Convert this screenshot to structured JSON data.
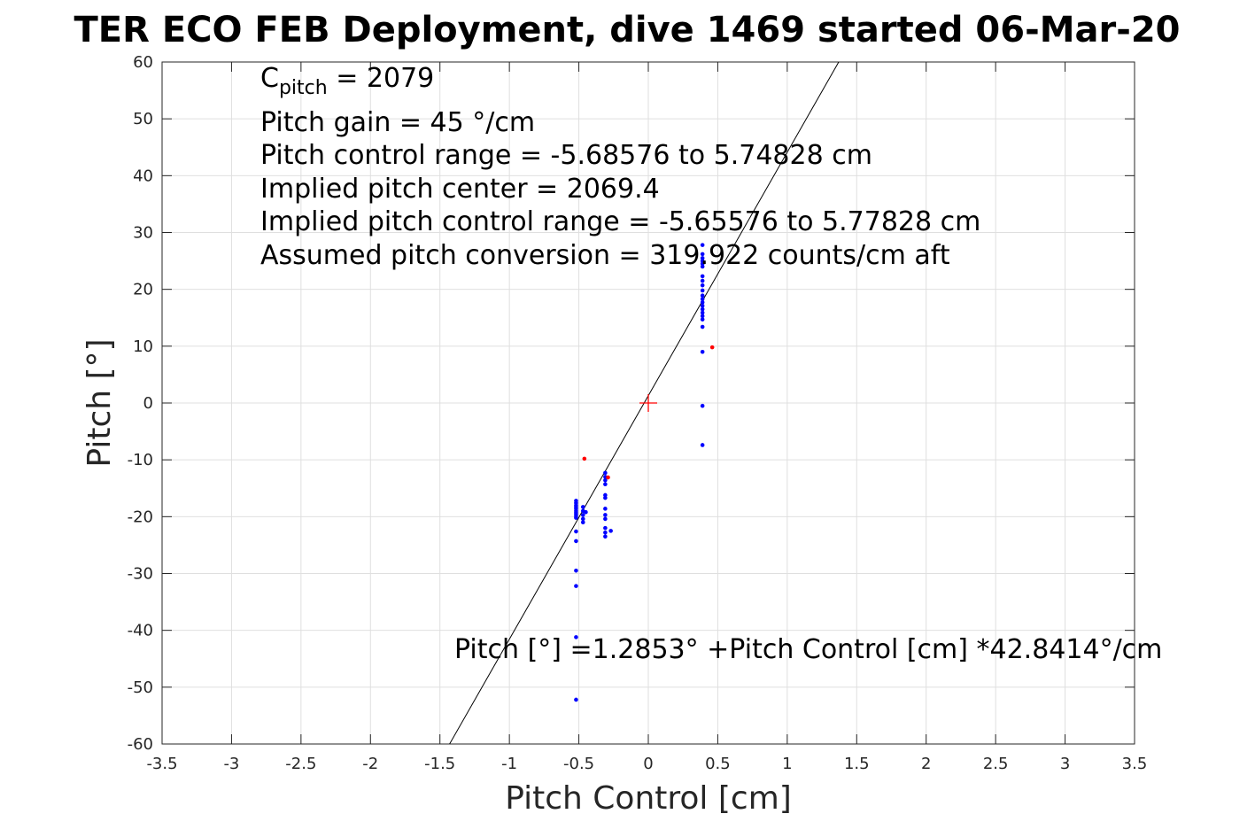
{
  "chart_data": {
    "type": "scatter",
    "title": "TER ECO FEB Deployment, dive 1469 started 06-Mar-20",
    "xlabel": "Pitch Control [cm]",
    "ylabel": "Pitch [°]",
    "xlim": [
      -3.5,
      3.5
    ],
    "ylim": [
      -60,
      60
    ],
    "xticks": [
      -3.5,
      -3,
      -2.5,
      -2,
      -1.5,
      -1,
      -0.5,
      0,
      0.5,
      1,
      1.5,
      2,
      2.5,
      3,
      3.5
    ],
    "xtick_labels": [
      "-3.5",
      "-3",
      "-2.5",
      "-2",
      "-1.5",
      "-1",
      "-0.5",
      "0",
      "0.5",
      "1",
      "1.5",
      "2",
      "2.5",
      "3",
      "3.5"
    ],
    "yticks": [
      -60,
      -50,
      -40,
      -30,
      -20,
      -10,
      0,
      10,
      20,
      30,
      40,
      50,
      60
    ],
    "ytick_labels": [
      "-60",
      "-50",
      "-40",
      "-30",
      "-20",
      "-10",
      "0",
      "10",
      "20",
      "30",
      "40",
      "50",
      "60"
    ],
    "grid": true,
    "annotations": {
      "c_pitch_main": "C",
      "c_pitch_sub": "pitch",
      "c_pitch_value": " = 2079",
      "pitch_gain": "Pitch gain = 45 °/cm",
      "control_range": "Pitch control range = -5.68576 to 5.74828 cm",
      "implied_center": "Implied pitch center = 2069.4",
      "implied_range": "Implied pitch control range = -5.65576 to 5.77828 cm",
      "conversion": "Assumed pitch conversion = 319.922 counts/cm aft",
      "fit_equation": "Pitch [°] =1.2853° +Pitch Control [cm] *42.8414°/cm"
    },
    "fit_line": {
      "intercept": 1.2853,
      "slope": 42.8414,
      "color": "#000000"
    },
    "center_marker": {
      "x": 0,
      "y": 0,
      "color": "#ff0000"
    },
    "series": [
      {
        "color": "#0000ff",
        "points": [
          [
            -0.52,
            -17.2
          ],
          [
            -0.52,
            -17.6
          ],
          [
            -0.52,
            -18.0
          ],
          [
            -0.52,
            -18.3
          ],
          [
            -0.52,
            -18.6
          ],
          [
            -0.52,
            -19.0
          ],
          [
            -0.52,
            -19.3
          ],
          [
            -0.52,
            -19.6
          ],
          [
            -0.52,
            -19.9
          ],
          [
            -0.52,
            -20.2
          ],
          [
            -0.52,
            -22.6
          ],
          [
            -0.52,
            -24.3
          ],
          [
            -0.52,
            -29.5
          ],
          [
            -0.52,
            -32.2
          ],
          [
            -0.52,
            -41.2
          ],
          [
            -0.52,
            -52.2
          ],
          [
            -0.47,
            -18.3
          ],
          [
            -0.47,
            -19.0
          ],
          [
            -0.47,
            -19.7
          ],
          [
            -0.47,
            -20.4
          ],
          [
            -0.47,
            -21.0
          ],
          [
            -0.45,
            -19.2
          ],
          [
            -0.31,
            -12.3
          ],
          [
            -0.31,
            -13.0
          ],
          [
            -0.31,
            -13.6
          ],
          [
            -0.31,
            -14.3
          ],
          [
            -0.31,
            -16.2
          ],
          [
            -0.31,
            -16.7
          ],
          [
            -0.31,
            -18.6
          ],
          [
            -0.31,
            -19.7
          ],
          [
            -0.31,
            -20.4
          ],
          [
            -0.31,
            -22.0
          ],
          [
            -0.31,
            -22.8
          ],
          [
            -0.31,
            -23.5
          ],
          [
            -0.27,
            -22.5
          ],
          [
            0.39,
            27.8
          ],
          [
            0.39,
            26.2
          ],
          [
            0.39,
            25.5
          ],
          [
            0.39,
            25.0
          ],
          [
            0.39,
            24.5
          ],
          [
            0.39,
            24.0
          ],
          [
            0.39,
            22.3
          ],
          [
            0.39,
            21.5
          ],
          [
            0.39,
            20.7
          ],
          [
            0.39,
            19.8
          ],
          [
            0.39,
            18.9
          ],
          [
            0.39,
            18.3
          ],
          [
            0.39,
            17.7
          ],
          [
            0.39,
            17.1
          ],
          [
            0.39,
            16.5
          ],
          [
            0.39,
            15.9
          ],
          [
            0.39,
            15.3
          ],
          [
            0.39,
            14.7
          ],
          [
            0.39,
            13.4
          ],
          [
            0.39,
            9.0
          ],
          [
            0.39,
            -0.5
          ],
          [
            0.39,
            -7.4
          ]
        ]
      },
      {
        "color": "#ff0000",
        "points": [
          [
            -0.46,
            -9.8
          ],
          [
            -0.29,
            -13.1
          ],
          [
            0.46,
            9.8
          ]
        ]
      }
    ]
  }
}
